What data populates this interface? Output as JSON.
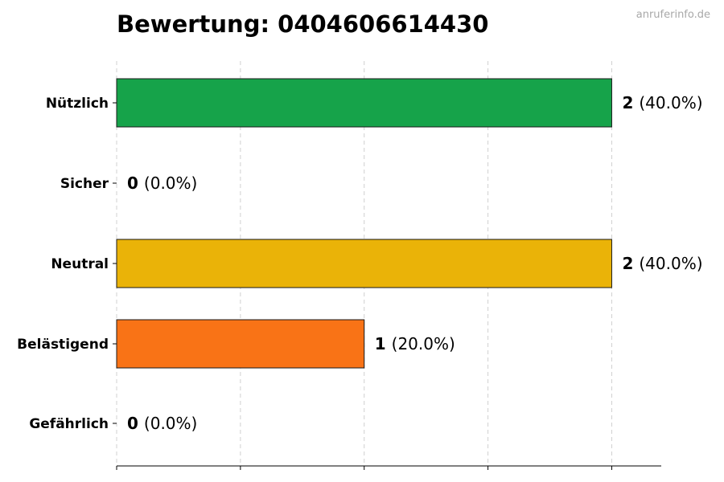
{
  "title": "Bewertung: 0404606614430",
  "watermark": "anruferinfo.de",
  "chart_data": {
    "type": "bar",
    "orientation": "horizontal",
    "title": "Bewertung: 0404606614430",
    "xlabel": "",
    "ylabel": "",
    "categories": [
      "Nützlich",
      "Sicher",
      "Neutral",
      "Belästigend",
      "Gefährlich"
    ],
    "values": [
      2,
      0,
      2,
      1,
      0
    ],
    "percent_labels": [
      "(40.0%)",
      "(0.0%)",
      "(40.0%)",
      "(20.0%)",
      "(0.0%)"
    ],
    "colors": [
      "#16a34a",
      "#2563eb",
      "#eab308",
      "#f97316",
      "#dc2626"
    ],
    "xlim": [
      0,
      2.2
    ],
    "x_ticks": [
      0,
      0.5,
      1,
      1.5,
      2
    ],
    "x_tick_labels_visible": false,
    "grid": "x-dashed",
    "legend": "none"
  }
}
